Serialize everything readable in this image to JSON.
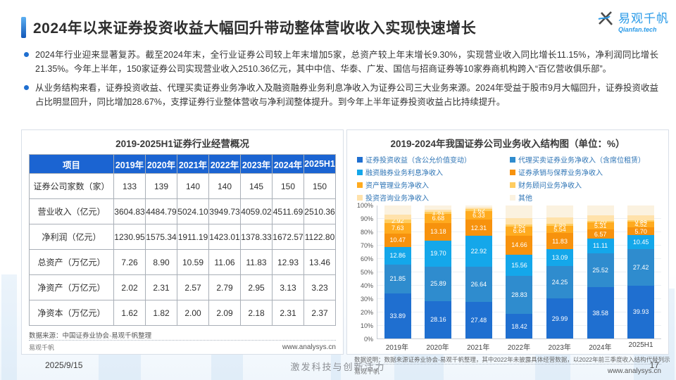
{
  "header": {
    "title": "2024年以来证券投资收益大幅回升带动整体营收收入实现快速增长",
    "logo_cn": "易观千帆",
    "logo_en": "Qianfan.tech"
  },
  "bullets": [
    {
      "text": "2024年行业迎来显著复苏。截至2024年末，全行业证券公司较上年末增加5家，总资产较上年末增长9.30%，实现营业收入同比增长11.15%，净利润同比增长21.35%。今年上半年，150家证券公司实现营业收入2510.36亿元，其中中信、华泰、广发、国信与招商证券等10家券商机构跨入“百亿营收俱乐部”。"
    },
    {
      "text": "从业务结构来看，证券投资收益、代理买卖证券业务净收入及融资融券业务利息净收入为证券公司三大业务来源。2024年受益于股市9月大幅回升，证券投资收益占比明显回升，同比增加28.67%，支撑证券行业整体营收与净利润整体提升。到今年上半年证券投资收益占比持续提升。"
    }
  ],
  "table": {
    "title": "2019-2025H1证券行业经营概况",
    "header": [
      "项目",
      "2019年",
      "2020年",
      "2021年",
      "2022年",
      "2023年",
      "2024年",
      "2025H1"
    ],
    "rows": [
      [
        "证券公司家数（家）",
        "133",
        "139",
        "140",
        "140",
        "145",
        "150",
        "150"
      ],
      [
        "营业收入（亿元）",
        "3604.83",
        "4484.79",
        "5024.10",
        "3949.73",
        "4059.02",
        "4511.69",
        "2510.36"
      ],
      [
        "净利润（亿元）",
        "1230.95",
        "1575.34",
        "1911.19",
        "1423.01",
        "1378.33",
        "1672.57",
        "1122.80"
      ],
      [
        "总资产（万亿元）",
        "7.26",
        "8.90",
        "10.59",
        "11.06",
        "11.83",
        "12.93",
        "13.46"
      ],
      [
        "净资产（万亿元）",
        "2.02",
        "2.31",
        "2.57",
        "2.79",
        "2.95",
        "3.13",
        "3.23"
      ],
      [
        "净资本（万亿元）",
        "1.62",
        "1.82",
        "2.00",
        "2.09",
        "2.18",
        "2.31",
        "2.37"
      ]
    ],
    "source": "数据来源：中国证券业协会·易观千帆整理"
  },
  "chart_data": {
    "type": "bar",
    "stacked": true,
    "title": "2019-2024年我国证券公司业务收入结构图（单位：%）",
    "categories": [
      "2019年",
      "2020年",
      "2021年",
      "2022年",
      "2023年",
      "2024年",
      "2025H1"
    ],
    "ylim": [
      0,
      100
    ],
    "yticks": [
      "0%",
      "10%",
      "20%",
      "30%",
      "40%",
      "50%",
      "60%",
      "70%",
      "80%",
      "90%",
      "100%"
    ],
    "grid": true,
    "legend_position": "top",
    "series": [
      {
        "name": "证券投资收益（含公允价值变动）",
        "color": "#1f6fd0",
        "labeled": true,
        "values": [
          33.89,
          28.16,
          27.48,
          18.42,
          29.99,
          38.58,
          39.93
        ]
      },
      {
        "name": "代理买卖证券业务净收入（含席位租赁）",
        "color": "#2f8cce",
        "labeled": true,
        "values": [
          21.85,
          25.89,
          26.64,
          28.83,
          24.25,
          25.52,
          27.42
        ]
      },
      {
        "name": "融资融券业务利息净收入",
        "color": "#14a7ea",
        "labeled": true,
        "values": [
          12.86,
          19.7,
          22.92,
          15.56,
          13.09,
          11.11,
          10.45
        ]
      },
      {
        "name": "证券承销与保荐业务净收入",
        "color": "#f7920d",
        "labeled": true,
        "values": [
          10.47,
          13.18,
          12.31,
          14.66,
          11.83,
          6.57,
          5.7
        ]
      },
      {
        "name": "资产管理业务净收入",
        "color": "#ffab1f",
        "labeled": true,
        "values": [
          7.63,
          6.68,
          6.33,
          6.64,
          5.54,
          5.31,
          4.52
        ]
      },
      {
        "name": "财务顾问业务净收入",
        "color": "#ffcd61",
        "labeled": true,
        "values": [
          2.92,
          1.81,
          1.62,
          1.52,
          1.55,
          1.2,
          0.88
        ]
      },
      {
        "name": "投资咨询业务净收入",
        "color": "#ffe2ab",
        "labeled": false,
        "values": [
          3.63,
          1.6,
          0.95,
          5.03,
          4.81,
          4.1,
          3.89
        ]
      },
      {
        "name": "其他",
        "color": "#fbf2e0",
        "labeled": false,
        "values": [
          6.75,
          2.98,
          1.75,
          9.34,
          8.94,
          7.61,
          7.21
        ]
      }
    ],
    "note": "数据说明：数据来源证券业协会-易观千帆整理，其中2022年未披露具体经营数据，以2022年前三季度收入结构代替列示"
  },
  "panel_footer": {
    "brand": "易观千帆",
    "site": "www.analysys.cn"
  },
  "footer": {
    "date": "2025/9/15",
    "motto": "激发科技与创新活力",
    "page": "17"
  }
}
